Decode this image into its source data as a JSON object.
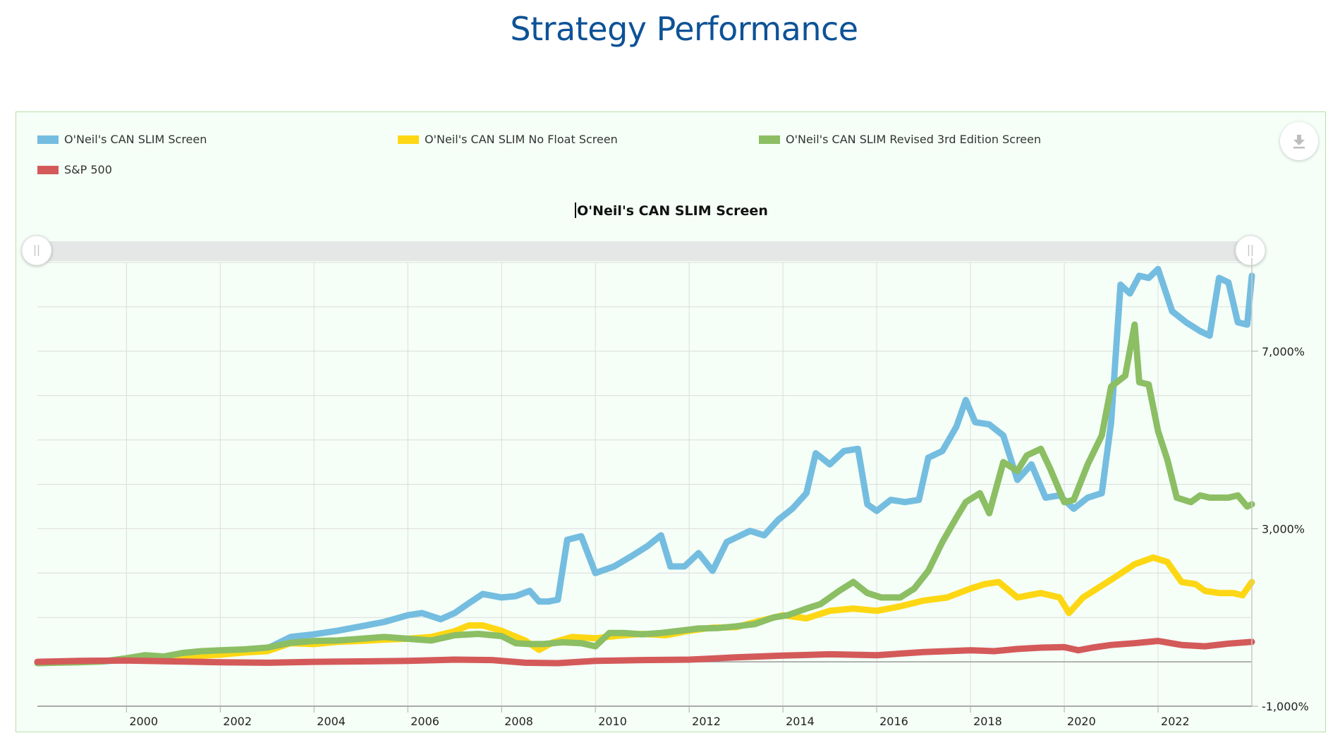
{
  "page": {
    "title": "Strategy Performance"
  },
  "toolbar": {
    "download_icon": "download-icon"
  },
  "chart_data": {
    "type": "line",
    "title": "O'Neil's CAN SLIM Screen",
    "xlabel": "",
    "ylabel": "",
    "x_ticks": [
      "2000",
      "2002",
      "2004",
      "2006",
      "2008",
      "2010",
      "2012",
      "2014",
      "2016",
      "2018",
      "2020",
      "2022"
    ],
    "y_ticks": [
      "-1,000%",
      "3,000%",
      "7,000%"
    ],
    "y_tick_values": [
      -1000,
      3000,
      7000
    ],
    "xlim": [
      1998.1,
      2024.0
    ],
    "ylim": [
      -1000,
      9000
    ],
    "y_grid_step": 1000,
    "grid": true,
    "y_axis_side": "right",
    "legend_position": "top-left",
    "range_selector": {
      "start": 1998.1,
      "end": 2024.0
    },
    "series": [
      {
        "name": "O'Neil's CAN SLIM Screen",
        "color": "#74bde0",
        "x": [
          1998.1,
          1998.5,
          1999.0,
          1999.5,
          2000.0,
          2000.5,
          2001.0,
          2001.5,
          2002.0,
          2002.5,
          2003.0,
          2003.5,
          2004.0,
          2004.5,
          2005.0,
          2005.5,
          2006.0,
          2006.3,
          2006.7,
          2007.0,
          2007.3,
          2007.6,
          2008.0,
          2008.3,
          2008.6,
          2008.8,
          2009.0,
          2009.2,
          2009.4,
          2009.7,
          2010.0,
          2010.4,
          2010.8,
          2011.1,
          2011.4,
          2011.6,
          2011.9,
          2012.2,
          2012.5,
          2012.8,
          2013.0,
          2013.3,
          2013.6,
          2013.9,
          2014.2,
          2014.5,
          2014.7,
          2015.0,
          2015.3,
          2015.6,
          2015.8,
          2016.0,
          2016.3,
          2016.6,
          2016.9,
          2017.1,
          2017.4,
          2017.7,
          2017.9,
          2018.1,
          2018.4,
          2018.7,
          2019.0,
          2019.3,
          2019.6,
          2019.9,
          2020.2,
          2020.5,
          2020.8,
          2021.0,
          2021.2,
          2021.4,
          2021.6,
          2021.8,
          2022.0,
          2022.3,
          2022.6,
          2022.9,
          2023.1,
          2023.3,
          2023.5,
          2023.7,
          2023.9,
          2024.0
        ],
        "values": [
          -20,
          -10,
          0,
          10,
          50,
          80,
          120,
          160,
          220,
          260,
          300,
          560,
          620,
          700,
          800,
          900,
          1050,
          1100,
          960,
          1100,
          1320,
          1530,
          1450,
          1480,
          1600,
          1360,
          1360,
          1400,
          2750,
          2830,
          2000,
          2150,
          2400,
          2600,
          2850,
          2150,
          2150,
          2450,
          2050,
          2700,
          2800,
          2950,
          2850,
          3200,
          3450,
          3800,
          4700,
          4450,
          4750,
          4800,
          3550,
          3400,
          3650,
          3600,
          3650,
          4600,
          4750,
          5300,
          5900,
          5400,
          5350,
          5100,
          4100,
          4450,
          3700,
          3750,
          3450,
          3700,
          3800,
          5400,
          8500,
          8300,
          8700,
          8650,
          8850,
          7900,
          7650,
          7450,
          7350,
          8650,
          8550,
          7650,
          7600,
          8700
        ]
      },
      {
        "name": "O'Neil's CAN SLIM No Float Screen",
        "color": "#fdd714",
        "x": [
          1998.1,
          1998.5,
          1999.0,
          1999.5,
          2000.0,
          2000.5,
          2001.0,
          2001.5,
          2002.0,
          2002.5,
          2003.0,
          2003.5,
          2004.0,
          2004.5,
          2005.0,
          2005.5,
          2006.0,
          2006.5,
          2007.0,
          2007.3,
          2007.6,
          2008.0,
          2008.5,
          2008.8,
          2009.1,
          2009.5,
          2010.0,
          2010.5,
          2011.0,
          2011.5,
          2012.0,
          2012.5,
          2013.0,
          2013.5,
          2014.0,
          2014.5,
          2015.0,
          2015.5,
          2016.0,
          2016.5,
          2017.0,
          2017.5,
          2018.0,
          2018.3,
          2018.6,
          2019.0,
          2019.5,
          2019.9,
          2020.1,
          2020.4,
          2020.7,
          2021.0,
          2021.5,
          2021.9,
          2022.2,
          2022.5,
          2022.8,
          2023.0,
          2023.3,
          2023.6,
          2023.8,
          2024.0
        ],
        "values": [
          -20,
          -10,
          0,
          20,
          40,
          60,
          100,
          130,
          160,
          210,
          240,
          420,
          400,
          450,
          470,
          500,
          520,
          560,
          690,
          820,
          820,
          700,
          480,
          270,
          440,
          560,
          530,
          590,
          630,
          600,
          700,
          770,
          780,
          920,
          1050,
          980,
          1150,
          1200,
          1150,
          1250,
          1380,
          1450,
          1650,
          1750,
          1800,
          1450,
          1550,
          1450,
          1100,
          1450,
          1650,
          1850,
          2200,
          2350,
          2250,
          1800,
          1750,
          1600,
          1550,
          1550,
          1500,
          1800
        ]
      },
      {
        "name": "O'Neil's CAN SLIM Revised 3rd Edition Screen",
        "color": "#8cbe64",
        "x": [
          1998.1,
          1998.5,
          1999.0,
          1999.5,
          2000.0,
          2000.4,
          2000.8,
          2001.2,
          2001.6,
          2002.0,
          2002.5,
          2003.0,
          2003.5,
          2004.0,
          2004.5,
          2005.0,
          2005.5,
          2006.0,
          2006.5,
          2007.0,
          2007.5,
          2008.0,
          2008.3,
          2008.6,
          2008.9,
          2009.3,
          2009.7,
          2010.0,
          2010.3,
          2010.6,
          2011.0,
          2011.4,
          2011.8,
          2012.2,
          2012.6,
          2013.0,
          2013.4,
          2013.8,
          2014.1,
          2014.5,
          2014.8,
          2015.2,
          2015.5,
          2015.8,
          2016.1,
          2016.5,
          2016.8,
          2017.1,
          2017.4,
          2017.7,
          2017.9,
          2018.2,
          2018.4,
          2018.7,
          2019.0,
          2019.2,
          2019.5,
          2019.7,
          2020.0,
          2020.2,
          2020.5,
          2020.8,
          2021.0,
          2021.3,
          2021.5,
          2021.6,
          2021.8,
          2022.0,
          2022.2,
          2022.4,
          2022.7,
          2022.9,
          2023.1,
          2023.3,
          2023.5,
          2023.7,
          2023.9,
          2024.0
        ],
        "values": [
          -30,
          -20,
          -10,
          10,
          80,
          150,
          120,
          200,
          240,
          260,
          280,
          320,
          430,
          470,
          480,
          520,
          560,
          520,
          480,
          600,
          630,
          580,
          420,
          400,
          400,
          440,
          420,
          350,
          650,
          650,
          620,
          650,
          700,
          750,
          760,
          800,
          850,
          1000,
          1050,
          1200,
          1300,
          1600,
          1800,
          1550,
          1450,
          1450,
          1650,
          2050,
          2700,
          3250,
          3600,
          3800,
          3350,
          4500,
          4300,
          4650,
          4800,
          4350,
          3600,
          3650,
          4450,
          5100,
          6200,
          6450,
          7600,
          6300,
          6250,
          5200,
          4550,
          3700,
          3600,
          3750,
          3700,
          3700,
          3700,
          3750,
          3500,
          3550
        ]
      },
      {
        "name": "S&P 500",
        "color": "#d45a5a",
        "x": [
          1998.1,
          1999.0,
          2000.0,
          2001.0,
          2002.0,
          2003.0,
          2004.0,
          2005.0,
          2006.0,
          2007.0,
          2007.8,
          2008.5,
          2009.2,
          2010.0,
          2011.0,
          2012.0,
          2013.0,
          2014.0,
          2015.0,
          2016.0,
          2017.0,
          2018.0,
          2018.5,
          2019.0,
          2019.5,
          2020.0,
          2020.3,
          2020.6,
          2021.0,
          2021.5,
          2022.0,
          2022.5,
          2023.0,
          2023.5,
          2024.0
        ],
        "values": [
          0,
          20,
          30,
          10,
          -10,
          -20,
          0,
          10,
          20,
          50,
          40,
          -20,
          -30,
          20,
          40,
          50,
          100,
          140,
          170,
          150,
          220,
          260,
          240,
          290,
          320,
          330,
          260,
          320,
          380,
          420,
          470,
          380,
          350,
          410,
          450
        ]
      }
    ]
  }
}
